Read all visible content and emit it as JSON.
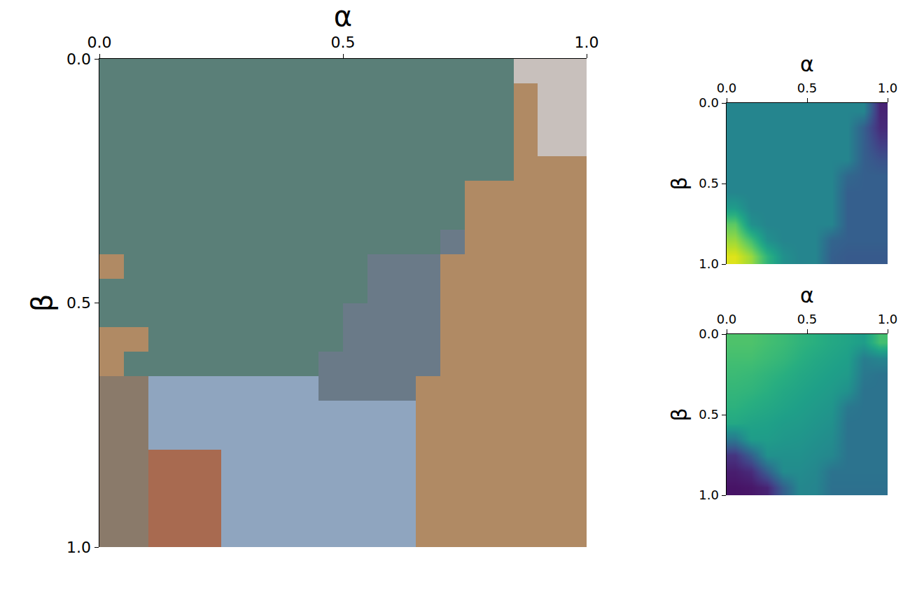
{
  "chart_data": [
    {
      "type": "heatmap",
      "x_label": "α",
      "y_label": "β",
      "xlim": [
        0,
        1
      ],
      "ylim": [
        1,
        0
      ],
      "xticks": [
        {
          "value": 0,
          "label": "0.0"
        },
        {
          "value": 0.5,
          "label": "0.5"
        },
        {
          "value": 1,
          "label": "1.0"
        }
      ],
      "yticks": [
        {
          "value": 0,
          "label": "0.0"
        },
        {
          "value": 0.5,
          "label": "0.5"
        },
        {
          "value": 1,
          "label": "1.0"
        }
      ],
      "colors": [
        "#5a7f78",
        "#b08a64",
        "#c8c0bc",
        "#6a7a88",
        "#8fa5bf",
        "#a86a50",
        "#8a7a6a"
      ],
      "cells": [
        [
          0,
          0,
          0,
          0,
          0,
          0,
          0,
          0,
          0,
          0,
          0,
          0,
          0,
          0,
          0,
          0,
          0,
          2,
          2,
          2
        ],
        [
          0,
          0,
          0,
          0,
          0,
          0,
          0,
          0,
          0,
          0,
          0,
          0,
          0,
          0,
          0,
          0,
          0,
          1,
          2,
          2
        ],
        [
          0,
          0,
          0,
          0,
          0,
          0,
          0,
          0,
          0,
          0,
          0,
          0,
          0,
          0,
          0,
          0,
          0,
          1,
          2,
          2
        ],
        [
          0,
          0,
          0,
          0,
          0,
          0,
          0,
          0,
          0,
          0,
          0,
          0,
          0,
          0,
          0,
          0,
          0,
          1,
          2,
          2
        ],
        [
          0,
          0,
          0,
          0,
          0,
          0,
          0,
          0,
          0,
          0,
          0,
          0,
          0,
          0,
          0,
          0,
          0,
          1,
          1,
          1
        ],
        [
          0,
          0,
          0,
          0,
          0,
          0,
          0,
          0,
          0,
          0,
          0,
          0,
          0,
          0,
          0,
          1,
          1,
          1,
          1,
          1
        ],
        [
          0,
          0,
          0,
          0,
          0,
          0,
          0,
          0,
          0,
          0,
          0,
          0,
          0,
          0,
          0,
          1,
          1,
          1,
          1,
          1
        ],
        [
          0,
          0,
          0,
          0,
          0,
          0,
          0,
          0,
          0,
          0,
          0,
          0,
          0,
          0,
          3,
          1,
          1,
          1,
          1,
          1
        ],
        [
          1,
          0,
          0,
          0,
          0,
          0,
          0,
          0,
          0,
          0,
          0,
          3,
          3,
          3,
          1,
          1,
          1,
          1,
          1,
          1
        ],
        [
          0,
          0,
          0,
          0,
          0,
          0,
          0,
          0,
          0,
          0,
          0,
          3,
          3,
          3,
          1,
          1,
          1,
          1,
          1,
          1
        ],
        [
          0,
          0,
          0,
          0,
          0,
          0,
          0,
          0,
          0,
          0,
          3,
          3,
          3,
          3,
          1,
          1,
          1,
          1,
          1,
          1
        ],
        [
          1,
          1,
          0,
          0,
          0,
          0,
          0,
          0,
          0,
          0,
          3,
          3,
          3,
          3,
          1,
          1,
          1,
          1,
          1,
          1
        ],
        [
          1,
          0,
          0,
          0,
          0,
          0,
          0,
          0,
          0,
          3,
          3,
          3,
          3,
          3,
          1,
          1,
          1,
          1,
          1,
          1
        ],
        [
          6,
          6,
          4,
          4,
          4,
          4,
          4,
          4,
          4,
          3,
          3,
          3,
          3,
          1,
          1,
          1,
          1,
          1,
          1,
          1
        ],
        [
          6,
          6,
          4,
          4,
          4,
          4,
          4,
          4,
          4,
          4,
          4,
          4,
          4,
          1,
          1,
          1,
          1,
          1,
          1,
          1
        ],
        [
          6,
          6,
          4,
          4,
          4,
          4,
          4,
          4,
          4,
          4,
          4,
          4,
          4,
          1,
          1,
          1,
          1,
          1,
          1,
          1
        ],
        [
          6,
          6,
          5,
          5,
          5,
          4,
          4,
          4,
          4,
          4,
          4,
          4,
          4,
          1,
          1,
          1,
          1,
          1,
          1,
          1
        ],
        [
          6,
          6,
          5,
          5,
          5,
          4,
          4,
          4,
          4,
          4,
          4,
          4,
          4,
          1,
          1,
          1,
          1,
          1,
          1,
          1
        ],
        [
          6,
          6,
          5,
          5,
          5,
          4,
          4,
          4,
          4,
          4,
          4,
          4,
          4,
          1,
          1,
          1,
          1,
          1,
          1,
          1
        ],
        [
          6,
          6,
          5,
          5,
          5,
          4,
          4,
          4,
          4,
          4,
          4,
          4,
          4,
          1,
          1,
          1,
          1,
          1,
          1,
          1
        ]
      ]
    },
    {
      "type": "heatmap",
      "x_label": "α",
      "y_label": "β",
      "xlim": [
        0,
        1
      ],
      "ylim": [
        1,
        0
      ],
      "zlim": [
        0,
        1
      ],
      "xticks": [
        {
          "value": 0,
          "label": "0.0"
        },
        {
          "value": 0.5,
          "label": "0.5"
        },
        {
          "value": 1,
          "label": "1.0"
        }
      ],
      "yticks": [
        {
          "value": 0,
          "label": "0.0"
        },
        {
          "value": 0.5,
          "label": "0.5"
        },
        {
          "value": 1,
          "label": "1.0"
        }
      ],
      "cells": [
        [
          0.45,
          0.45,
          0.45,
          0.45,
          0.45,
          0.45,
          0.45,
          0.45,
          0.45,
          0.1
        ],
        [
          0.45,
          0.45,
          0.45,
          0.45,
          0.45,
          0.45,
          0.45,
          0.45,
          0.3,
          0.12
        ],
        [
          0.45,
          0.45,
          0.45,
          0.45,
          0.45,
          0.45,
          0.45,
          0.45,
          0.3,
          0.18
        ],
        [
          0.45,
          0.45,
          0.45,
          0.45,
          0.45,
          0.45,
          0.45,
          0.45,
          0.3,
          0.25
        ],
        [
          0.45,
          0.45,
          0.45,
          0.45,
          0.45,
          0.45,
          0.45,
          0.33,
          0.3,
          0.3
        ],
        [
          0.45,
          0.45,
          0.45,
          0.45,
          0.45,
          0.45,
          0.45,
          0.3,
          0.3,
          0.3
        ],
        [
          0.55,
          0.45,
          0.45,
          0.45,
          0.45,
          0.45,
          0.45,
          0.3,
          0.3,
          0.3
        ],
        [
          0.75,
          0.5,
          0.45,
          0.45,
          0.45,
          0.45,
          0.45,
          0.3,
          0.3,
          0.3
        ],
        [
          0.85,
          0.7,
          0.5,
          0.45,
          0.45,
          0.45,
          0.32,
          0.3,
          0.3,
          0.3
        ],
        [
          0.95,
          0.85,
          0.65,
          0.5,
          0.45,
          0.45,
          0.3,
          0.28,
          0.28,
          0.28
        ]
      ]
    },
    {
      "type": "heatmap",
      "x_label": "α",
      "y_label": "β",
      "xlim": [
        0,
        1
      ],
      "ylim": [
        1,
        0
      ],
      "zlim": [
        0,
        1
      ],
      "xticks": [
        {
          "value": 0,
          "label": "0.0"
        },
        {
          "value": 0.5,
          "label": "0.5"
        },
        {
          "value": 1,
          "label": "1.0"
        }
      ],
      "yticks": [
        {
          "value": 0,
          "label": "0.0"
        },
        {
          "value": 0.5,
          "label": "0.5"
        },
        {
          "value": 1,
          "label": "1.0"
        }
      ],
      "cells": [
        [
          0.72,
          0.72,
          0.7,
          0.68,
          0.65,
          0.63,
          0.6,
          0.58,
          0.55,
          0.7
        ],
        [
          0.7,
          0.7,
          0.68,
          0.66,
          0.63,
          0.6,
          0.58,
          0.56,
          0.42,
          0.45
        ],
        [
          0.68,
          0.67,
          0.65,
          0.63,
          0.6,
          0.58,
          0.56,
          0.54,
          0.4,
          0.38
        ],
        [
          0.66,
          0.65,
          0.63,
          0.6,
          0.58,
          0.56,
          0.54,
          0.5,
          0.38,
          0.38
        ],
        [
          0.64,
          0.62,
          0.6,
          0.58,
          0.56,
          0.54,
          0.52,
          0.4,
          0.38,
          0.38
        ],
        [
          0.6,
          0.58,
          0.57,
          0.55,
          0.54,
          0.52,
          0.5,
          0.38,
          0.38,
          0.38
        ],
        [
          0.4,
          0.55,
          0.55,
          0.53,
          0.52,
          0.5,
          0.48,
          0.38,
          0.38,
          0.38
        ],
        [
          0.15,
          0.3,
          0.5,
          0.5,
          0.5,
          0.48,
          0.46,
          0.38,
          0.38,
          0.38
        ],
        [
          0.08,
          0.12,
          0.3,
          0.48,
          0.48,
          0.46,
          0.38,
          0.38,
          0.38,
          0.38
        ],
        [
          0.05,
          0.06,
          0.1,
          0.3,
          0.46,
          0.45,
          0.37,
          0.37,
          0.37,
          0.37
        ]
      ]
    }
  ]
}
